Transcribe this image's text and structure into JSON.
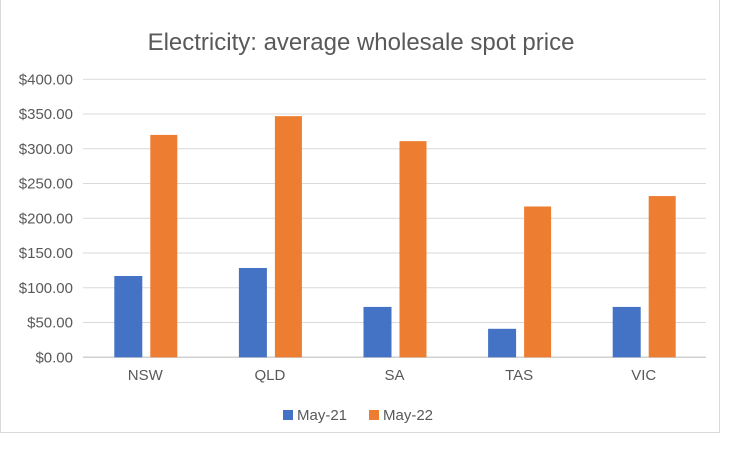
{
  "chart_data": {
    "type": "bar",
    "title": "Electricity: average wholesale spot price",
    "xlabel": "",
    "ylabel": "",
    "categories": [
      "NSW",
      "QLD",
      "SA",
      "TAS",
      "VIC"
    ],
    "series": [
      {
        "name": "May-21",
        "color": "#4472c4",
        "values": [
          117,
          128.5,
          72.5,
          41,
          72.5
        ]
      },
      {
        "name": "May-22",
        "color": "#ed7d31",
        "values": [
          320,
          347,
          311,
          217,
          232
        ]
      }
    ],
    "ylim": [
      0,
      400
    ],
    "yticks": [
      0,
      50,
      100,
      150,
      200,
      250,
      300,
      350,
      400
    ],
    "ytick_labels": [
      "$0.00",
      "$50.00",
      "$100.00",
      "$150.00",
      "$200.00",
      "$250.00",
      "$300.00",
      "$350.00",
      "$400.00"
    ],
    "grid": true,
    "legend_position": "bottom"
  }
}
